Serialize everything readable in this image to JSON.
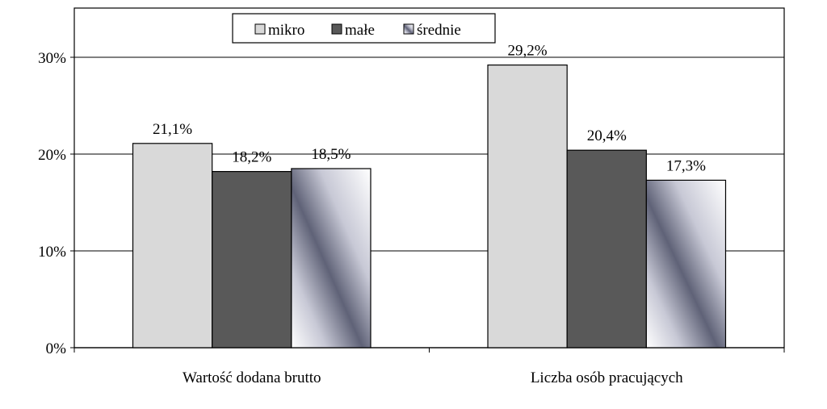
{
  "chart_data": {
    "type": "bar",
    "categories": [
      "Wartość dodana brutto",
      "Liczba osób pracujących"
    ],
    "series": [
      {
        "name": "mikro",
        "values": [
          21.1,
          29.2
        ],
        "labels": [
          "21,1%",
          "29,2%"
        ],
        "color": "#d9d9d9"
      },
      {
        "name": "małe",
        "values": [
          18.2,
          20.4
        ],
        "labels": [
          "18,2%",
          "20,4%"
        ],
        "color": "#595959"
      },
      {
        "name": "średnie",
        "values": [
          18.5,
          17.3
        ],
        "labels": [
          "18,5%",
          "17,3%"
        ],
        "color": "#9a9cb0"
      }
    ],
    "yticks": [
      0,
      10,
      20,
      30
    ],
    "ytick_labels": [
      "0%",
      "10%",
      "20%",
      "30%"
    ],
    "ylim": [
      0,
      30
    ],
    "title": "",
    "xlabel": "",
    "ylabel": "",
    "grid": true,
    "legend": "top-center"
  }
}
